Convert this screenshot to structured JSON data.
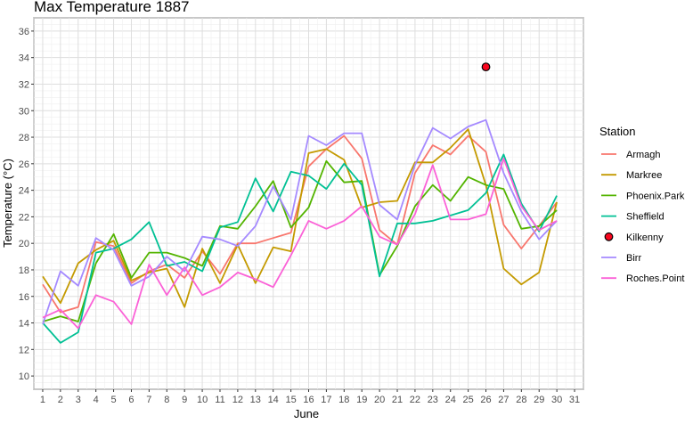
{
  "chart_data": {
    "type": "line",
    "title": "Max Temperature 1887",
    "xlabel": "June",
    "ylabel": "Temperature (°C)",
    "x": [
      1,
      2,
      3,
      4,
      5,
      6,
      7,
      8,
      9,
      10,
      11,
      12,
      13,
      14,
      15,
      16,
      17,
      18,
      19,
      20,
      21,
      22,
      23,
      24,
      25,
      26,
      27,
      28,
      29,
      30
    ],
    "x_ticks": [
      "1",
      "2",
      "3",
      "4",
      "5",
      "6",
      "7",
      "8",
      "9",
      "10",
      "11",
      "12",
      "13",
      "14",
      "15",
      "16",
      "17",
      "18",
      "19",
      "20",
      "21",
      "22",
      "23",
      "24",
      "25",
      "26",
      "27",
      "28",
      "29",
      "30",
      "31"
    ],
    "xlim": [
      0.5,
      31.5
    ],
    "ylim": [
      9,
      37
    ],
    "y_ticks": [
      10,
      12,
      14,
      16,
      18,
      20,
      22,
      24,
      26,
      28,
      30,
      32,
      34,
      36
    ],
    "grid": true,
    "legend_title": "Station",
    "legend_position": "right",
    "series": [
      {
        "name": "Armagh",
        "color": "#F8766D",
        "marker": "line",
        "values": [
          16.9,
          14.8,
          15.2,
          20.1,
          19.8,
          17.0,
          17.9,
          18.4,
          17.4,
          19.4,
          17.7,
          20.0,
          20.0,
          20.4,
          20.8,
          25.8,
          27.1,
          28.1,
          26.4,
          21.0,
          19.9,
          25.3,
          27.4,
          26.7,
          28.1,
          26.9,
          21.4,
          19.6,
          21.3,
          23.1
        ]
      },
      {
        "name": "Markree",
        "color": "#C49A00",
        "marker": "line",
        "values": [
          17.5,
          15.5,
          18.5,
          19.5,
          20.2,
          17.2,
          17.8,
          18.1,
          15.2,
          19.6,
          17.0,
          19.9,
          17.0,
          19.7,
          19.4,
          26.8,
          27.1,
          26.3,
          22.7,
          23.1,
          23.2,
          26.1,
          26.1,
          27.2,
          28.6,
          24.4,
          18.1,
          16.9,
          17.8,
          23.1
        ]
      },
      {
        "name": "Phoenix.Park",
        "color": "#53B400",
        "marker": "line",
        "values": [
          14.1,
          14.5,
          14.1,
          18.5,
          20.7,
          17.4,
          19.3,
          19.3,
          18.9,
          18.3,
          21.3,
          21.1,
          22.8,
          24.7,
          21.2,
          22.7,
          26.2,
          24.6,
          24.7,
          17.6,
          19.8,
          22.8,
          24.4,
          23.2,
          25.0,
          24.4,
          24.1,
          21.1,
          21.3,
          22.5
        ]
      },
      {
        "name": "Sheffield",
        "color": "#00C094",
        "marker": "line",
        "values": [
          14.0,
          12.5,
          13.3,
          19.3,
          19.6,
          20.3,
          21.6,
          18.3,
          18.6,
          17.9,
          21.2,
          21.6,
          24.9,
          22.4,
          25.4,
          25.1,
          24.1,
          26.0,
          24.4,
          17.5,
          21.5,
          21.5,
          21.7,
          22.1,
          22.5,
          23.8,
          26.7,
          23.0,
          20.9,
          23.6
        ]
      },
      {
        "name": "Kilkenny",
        "color": "#F8061E",
        "marker": "point",
        "points": [
          [
            26,
            33.3
          ]
        ]
      },
      {
        "name": "Birr",
        "color": "#A58AFF",
        "marker": "line",
        "values": [
          13.9,
          17.9,
          16.8,
          20.4,
          19.5,
          16.8,
          17.5,
          19.0,
          17.9,
          20.5,
          20.3,
          19.8,
          21.3,
          24.3,
          21.8,
          28.1,
          27.4,
          28.3,
          28.3,
          22.9,
          21.8,
          25.9,
          28.7,
          27.9,
          28.8,
          29.3,
          25.3,
          22.4,
          20.3,
          21.7
        ]
      },
      {
        "name": "Roches.Point",
        "color": "#FB61D7",
        "marker": "line",
        "values": [
          14.4,
          15.0,
          13.6,
          16.1,
          15.6,
          13.9,
          18.4,
          16.1,
          18.2,
          16.1,
          16.7,
          17.8,
          17.3,
          16.7,
          19.1,
          21.7,
          21.1,
          21.7,
          22.8,
          20.5,
          19.9,
          22.2,
          25.9,
          21.8,
          21.8,
          22.2,
          26.4,
          22.8,
          21.0,
          21.7
        ]
      }
    ]
  }
}
